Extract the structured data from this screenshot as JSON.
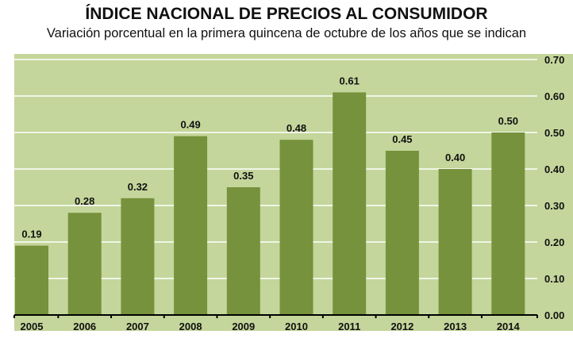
{
  "chart_data": {
    "type": "bar",
    "title": "ÍNDICE NACIONAL DE PRECIOS AL CONSUMIDOR",
    "subtitle": "Variación porcentual en la primera quincena de octubre de los años que se indican",
    "categories": [
      "2005",
      "2006",
      "2007",
      "2008",
      "2009",
      "2010",
      "2011",
      "2012",
      "2013",
      "2014"
    ],
    "values": [
      0.19,
      0.28,
      0.32,
      0.49,
      0.35,
      0.48,
      0.61,
      0.45,
      0.4,
      0.5
    ],
    "data_labels": [
      "0.19",
      "0.28",
      "0.32",
      "0.49",
      "0.35",
      "0.48",
      "0.61",
      "0.45",
      "0.40",
      "0.50"
    ],
    "ylim": [
      0,
      0.7
    ],
    "yticks": [
      "0.00",
      "0.10",
      "0.20",
      "0.30",
      "0.40",
      "0.50",
      "0.60",
      "0.70"
    ],
    "y_axis_side": "right",
    "grid": true,
    "xlabel": "",
    "ylabel": "",
    "colors": {
      "bar": "#76923c",
      "background": "#c4d69b",
      "grid": "#ffffff"
    }
  }
}
